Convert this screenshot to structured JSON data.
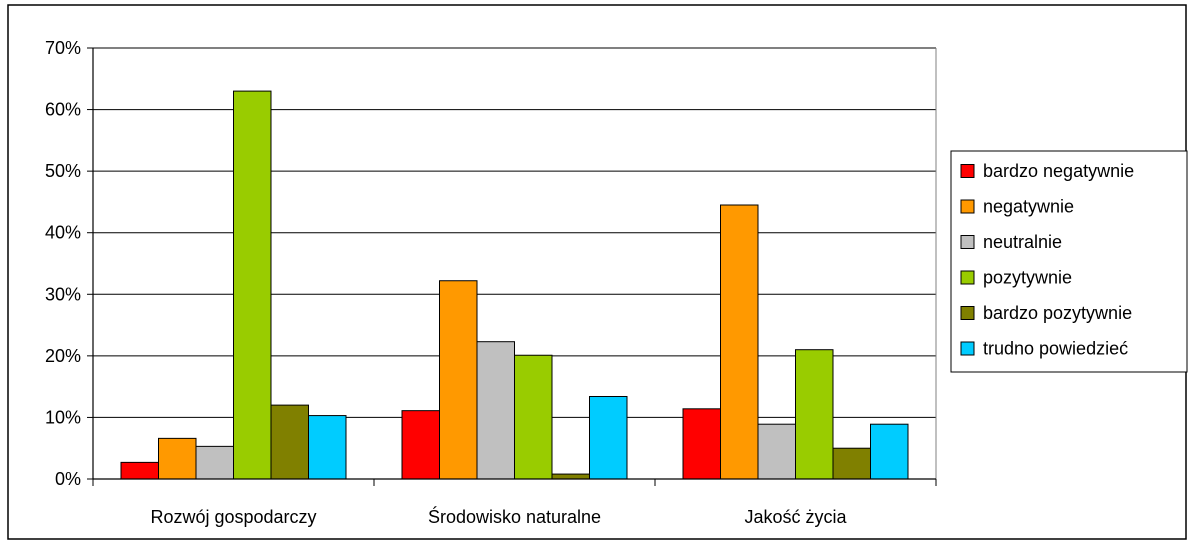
{
  "chart_data": {
    "type": "bar",
    "categories": [
      "Rozwój gospodarczy",
      "Środowisko naturalne",
      "Jakość życia"
    ],
    "series": [
      {
        "name": "bardzo negatywnie",
        "color": "#ff0000",
        "values": [
          2.7,
          11.1,
          11.4
        ]
      },
      {
        "name": "negatywnie",
        "color": "#ff9900",
        "values": [
          6.6,
          32.2,
          44.5
        ]
      },
      {
        "name": "neutralnie",
        "color": "#c0c0c0",
        "values": [
          5.3,
          22.3,
          8.9
        ]
      },
      {
        "name": "pozytywnie",
        "color": "#99cc00",
        "values": [
          63.0,
          20.1,
          21.0
        ]
      },
      {
        "name": "bardzo pozytywnie",
        "color": "#808000",
        "values": [
          12.0,
          0.8,
          5.0
        ]
      },
      {
        "name": "trudno powiedzieć",
        "color": "#00ccff",
        "values": [
          10.3,
          13.4,
          8.9
        ]
      }
    ],
    "ylim": [
      0,
      70
    ],
    "yticks": [
      0,
      10,
      20,
      30,
      40,
      50,
      60,
      70
    ],
    "ytick_labels": [
      "0%",
      "10%",
      "20%",
      "30%",
      "40%",
      "50%",
      "60%",
      "70%"
    ],
    "grid": true,
    "legend_position": "right"
  }
}
